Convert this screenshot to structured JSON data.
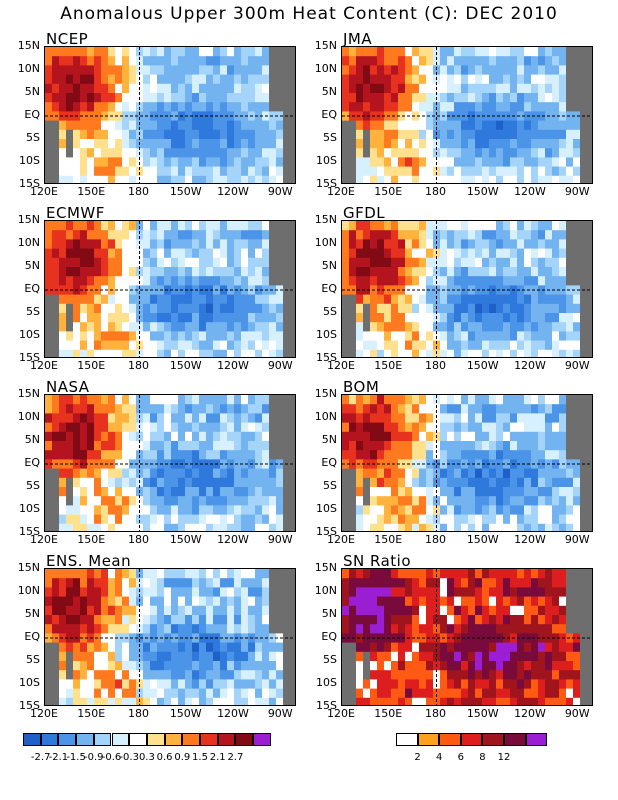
{
  "page_title": "Anomalous Upper 300m Heat Content (C): DEC 2010",
  "lat_ticks": [
    "15N",
    "10N",
    "5N",
    "EQ",
    "5S",
    "10S",
    "15S"
  ],
  "lon_ticks": [
    "120E",
    "150E",
    "180",
    "150W",
    "120W",
    "90W"
  ],
  "chart_data": [
    {
      "type": "heatmap",
      "title": "NCEP",
      "variable": "heat content anomaly",
      "units": "C",
      "lat_range": [
        "15S",
        "15N"
      ],
      "lon_range": [
        "120E",
        "80W"
      ],
      "reference_lines": [
        "EQ",
        "180"
      ]
    },
    {
      "type": "heatmap",
      "title": "JMA",
      "variable": "heat content anomaly",
      "units": "C",
      "lat_range": [
        "15S",
        "15N"
      ],
      "lon_range": [
        "120E",
        "80W"
      ],
      "reference_lines": [
        "EQ",
        "180"
      ]
    },
    {
      "type": "heatmap",
      "title": "ECMWF",
      "variable": "heat content anomaly",
      "units": "C",
      "lat_range": [
        "15S",
        "15N"
      ],
      "lon_range": [
        "120E",
        "80W"
      ],
      "reference_lines": [
        "EQ",
        "180"
      ]
    },
    {
      "type": "heatmap",
      "title": "GFDL",
      "variable": "heat content anomaly",
      "units": "C",
      "lat_range": [
        "15S",
        "15N"
      ],
      "lon_range": [
        "120E",
        "80W"
      ],
      "reference_lines": [
        "EQ",
        "180"
      ]
    },
    {
      "type": "heatmap",
      "title": "NASA",
      "variable": "heat content anomaly",
      "units": "C",
      "lat_range": [
        "15S",
        "15N"
      ],
      "lon_range": [
        "120E",
        "80W"
      ],
      "reference_lines": [
        "EQ",
        "180"
      ]
    },
    {
      "type": "heatmap",
      "title": "BOM",
      "variable": "heat content anomaly",
      "units": "C",
      "lat_range": [
        "15S",
        "15N"
      ],
      "lon_range": [
        "120E",
        "80W"
      ],
      "reference_lines": [
        "EQ",
        "180"
      ]
    },
    {
      "type": "heatmap",
      "title": "ENS. Mean",
      "variable": "heat content anomaly",
      "units": "C",
      "lat_range": [
        "15S",
        "15N"
      ],
      "lon_range": [
        "120E",
        "80W"
      ],
      "reference_lines": [
        "EQ",
        "180"
      ]
    },
    {
      "type": "heatmap",
      "title": "SN Ratio",
      "variable": "signal-to-noise ratio",
      "lat_range": [
        "15S",
        "15N"
      ],
      "lon_range": [
        "120E",
        "80W"
      ],
      "reference_lines": [
        "EQ",
        "180"
      ]
    }
  ],
  "anomaly_colorbar": {
    "labels": [
      "-2.7",
      "-2.1",
      "-1.5",
      "-0.9",
      "-0.6",
      "-0.3",
      "0.3",
      "0.6",
      "0.9",
      "1.5",
      "2.1",
      "2.7"
    ],
    "colors": [
      "#1e5fc8",
      "#2f78dc",
      "#4b94e8",
      "#73b4f0",
      "#a5d4fa",
      "#d7f0ff",
      "#ffffff",
      "#ffe08c",
      "#ffb23c",
      "#ff7a1e",
      "#e6321e",
      "#b4141e",
      "#820a14",
      "#9b1ed2"
    ]
  },
  "sn_colorbar": {
    "labels": [
      "2",
      "4",
      "6",
      "8",
      "12"
    ],
    "colors": [
      "#ffffff",
      "#ffa01e",
      "#ff5a14",
      "#dc1e1e",
      "#a0141e",
      "#780a3c",
      "#9b1ed2"
    ]
  },
  "land_color": "#6e6e6e"
}
